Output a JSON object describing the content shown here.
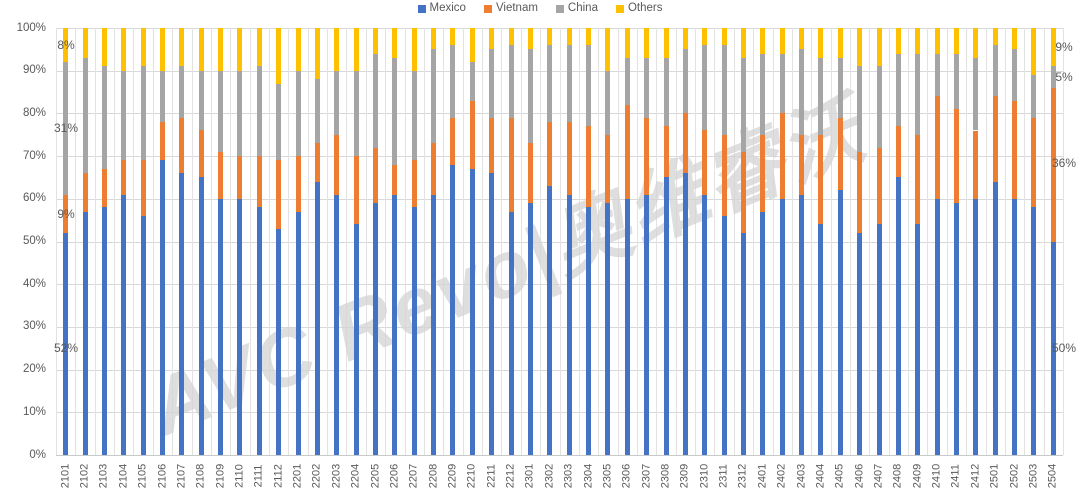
{
  "watermark": {
    "text": "AVC Revo|奥维睿沃"
  },
  "colors": {
    "background": "#FFFFFF",
    "text": "#595959",
    "grid": "#D9D9D9",
    "axis": "#C9C9C9"
  },
  "chart_data": {
    "type": "bar",
    "subtype": "100%-stacked-column",
    "title": "",
    "xlabel": "",
    "ylabel": "",
    "legend_position": "top",
    "grid": true,
    "categories": [
      "2101",
      "2102",
      "2103",
      "2104",
      "2105",
      "2106",
      "2107",
      "2108",
      "2109",
      "2110",
      "2111",
      "2112",
      "2201",
      "2202",
      "2203",
      "2204",
      "2205",
      "2206",
      "2207",
      "2208",
      "2209",
      "2210",
      "2211",
      "2212",
      "2301",
      "2302",
      "2303",
      "2304",
      "2305",
      "2306",
      "2307",
      "2308",
      "2309",
      "2310",
      "2311",
      "2312",
      "2401",
      "2402",
      "2403",
      "2404",
      "2405",
      "2406",
      "2407",
      "2408",
      "2409",
      "2410",
      "2411",
      "2412",
      "2501",
      "2502",
      "2503",
      "2504"
    ],
    "series": [
      {
        "name": "Mexico",
        "color": "#4472C4",
        "values": [
          52,
          57,
          58,
          61,
          56,
          69,
          66,
          65,
          60,
          60,
          58,
          53,
          57,
          64,
          61,
          54,
          59,
          61,
          58,
          61,
          68,
          67,
          66,
          57,
          59,
          63,
          61,
          58,
          59,
          60,
          61,
          65,
          66,
          61,
          56,
          52,
          57,
          60,
          61,
          54,
          62,
          52,
          54,
          65,
          54,
          60,
          59,
          60,
          64,
          60,
          58,
          50
        ]
      },
      {
        "name": "Vietnam",
        "color": "#ED7D31",
        "values": [
          9,
          9,
          9,
          8,
          13,
          9,
          13,
          11,
          11,
          10,
          12,
          16,
          13,
          9,
          14,
          16,
          13,
          7,
          11,
          12,
          11,
          16,
          13,
          22,
          14,
          15,
          17,
          19,
          16,
          22,
          18,
          12,
          14,
          15,
          19,
          19,
          18,
          20,
          14,
          21,
          17,
          19,
          18,
          12,
          21,
          24,
          22,
          16,
          20,
          23,
          21,
          36
        ]
      },
      {
        "name": "China",
        "color": "#A5A5A5",
        "values": [
          31,
          27,
          24,
          21,
          22,
          12,
          12,
          14,
          19,
          20,
          21,
          18,
          20,
          15,
          15,
          20,
          22,
          25,
          21,
          22,
          17,
          9,
          16,
          17,
          22,
          18,
          18,
          19,
          15,
          11,
          14,
          16,
          15,
          20,
          21,
          22,
          19,
          14,
          20,
          18,
          14,
          20,
          19,
          17,
          19,
          10,
          13,
          17,
          12,
          12,
          10,
          5
        ]
      },
      {
        "name": "Others",
        "color": "#FFC000",
        "values": [
          8,
          7,
          9,
          10,
          9,
          10,
          9,
          10,
          10,
          10,
          9,
          13,
          10,
          12,
          10,
          10,
          6,
          7,
          10,
          5,
          4,
          8,
          5,
          4,
          5,
          4,
          4,
          4,
          10,
          7,
          7,
          7,
          5,
          4,
          4,
          7,
          6,
          6,
          5,
          7,
          7,
          9,
          9,
          6,
          6,
          6,
          6,
          7,
          4,
          5,
          11,
          9
        ]
      }
    ],
    "y_axis": {
      "min": 0,
      "max": 100,
      "step": 10,
      "ticks_top_to_bottom": [
        "100%",
        "90%",
        "80%",
        "70%",
        "60%",
        "50%",
        "40%",
        "30%",
        "20%",
        "10%",
        "0%"
      ]
    },
    "x_axis": {
      "label_rotation": -90
    },
    "annotations": {
      "left": [
        {
          "text": "8%",
          "series": "Others",
          "value_center": 96
        },
        {
          "text": "31%",
          "series": "China",
          "value_center": 76.5
        },
        {
          "text": "9%",
          "series": "Vietnam",
          "value_center": 56.5
        },
        {
          "text": "52%",
          "series": "Mexico",
          "value_center": 25
        }
      ],
      "right": [
        {
          "text": "9%",
          "series": "Others",
          "value_center": 95.5
        },
        {
          "text": "5%",
          "series": "China",
          "value_center": 88.5
        },
        {
          "text": "36%",
          "series": "Vietnam",
          "value_center": 68.5
        },
        {
          "text": "50%",
          "series": "Mexico",
          "value_center": 25
        }
      ]
    }
  }
}
